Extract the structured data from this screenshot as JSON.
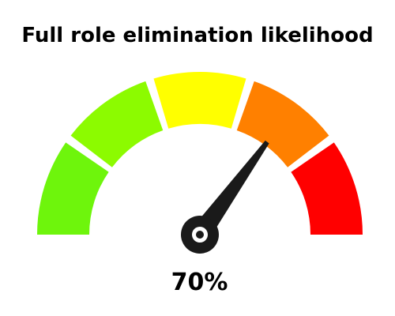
{
  "chart_data": {
    "type": "gauge",
    "title": "Full role elimination likelihood",
    "value": 70,
    "value_label": "70%",
    "range": [
      0,
      100
    ],
    "segments": [
      {
        "from": 0,
        "to": 20,
        "color": "#6ef50c"
      },
      {
        "from": 20,
        "to": 40,
        "color": "#8cfb00"
      },
      {
        "from": 40,
        "to": 60,
        "color": "#ffff00"
      },
      {
        "from": 60,
        "to": 80,
        "color": "#ff8000"
      },
      {
        "from": 80,
        "to": 100,
        "color": "#ff0000"
      }
    ],
    "needle_color": "#1a1a1a"
  }
}
